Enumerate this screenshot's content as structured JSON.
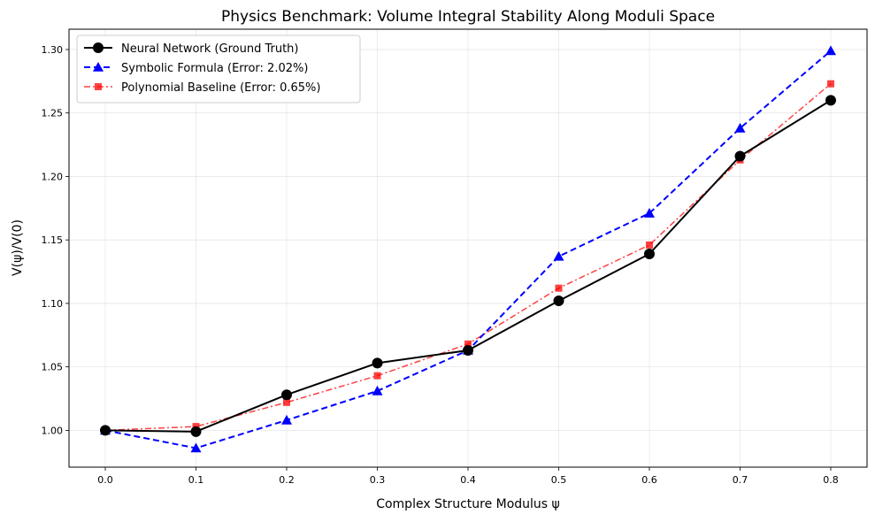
{
  "chart_data": {
    "type": "line",
    "title": "Physics Benchmark: Volume Integral Stability Along Moduli Space",
    "xlabel": "Complex Structure Modulus ψ",
    "ylabel": "V(ψ)/V(0)",
    "x": [
      0.0,
      0.1,
      0.2,
      0.3,
      0.4,
      0.5,
      0.6,
      0.7,
      0.8
    ],
    "x_tick_labels": [
      "0.0",
      "0.1",
      "0.2",
      "0.3",
      "0.4",
      "0.5",
      "0.6",
      "0.7",
      "0.8"
    ],
    "y_ticks": [
      1.0,
      1.05,
      1.1,
      1.15,
      1.2,
      1.25,
      1.3
    ],
    "y_tick_labels": [
      "1.00",
      "1.05",
      "1.10",
      "1.15",
      "1.20",
      "1.25",
      "1.30"
    ],
    "xlim": [
      -0.04,
      0.84
    ],
    "ylim": [
      0.971,
      1.316
    ],
    "grid": true,
    "legend_position": "top-left",
    "series": [
      {
        "name": "Neural Network (Ground Truth)",
        "color": "#000000",
        "line_style": "solid",
        "marker": "circle",
        "values": [
          1.0,
          0.999,
          1.028,
          1.053,
          1.063,
          1.102,
          1.139,
          1.216,
          1.26
        ]
      },
      {
        "name": "Symbolic Formula (Error: 2.02%)",
        "color": "#0000ff",
        "line_style": "dashed",
        "marker": "triangle",
        "values": [
          1.0,
          0.986,
          1.008,
          1.031,
          1.063,
          1.137,
          1.171,
          1.238,
          1.299
        ]
      },
      {
        "name": "Polynomial Baseline (Error: 0.65%)",
        "color": "#ff0000",
        "line_style": "dashdot",
        "marker": "square",
        "values": [
          1.0,
          1.003,
          1.022,
          1.043,
          1.068,
          1.112,
          1.146,
          1.213,
          1.273
        ]
      }
    ]
  }
}
